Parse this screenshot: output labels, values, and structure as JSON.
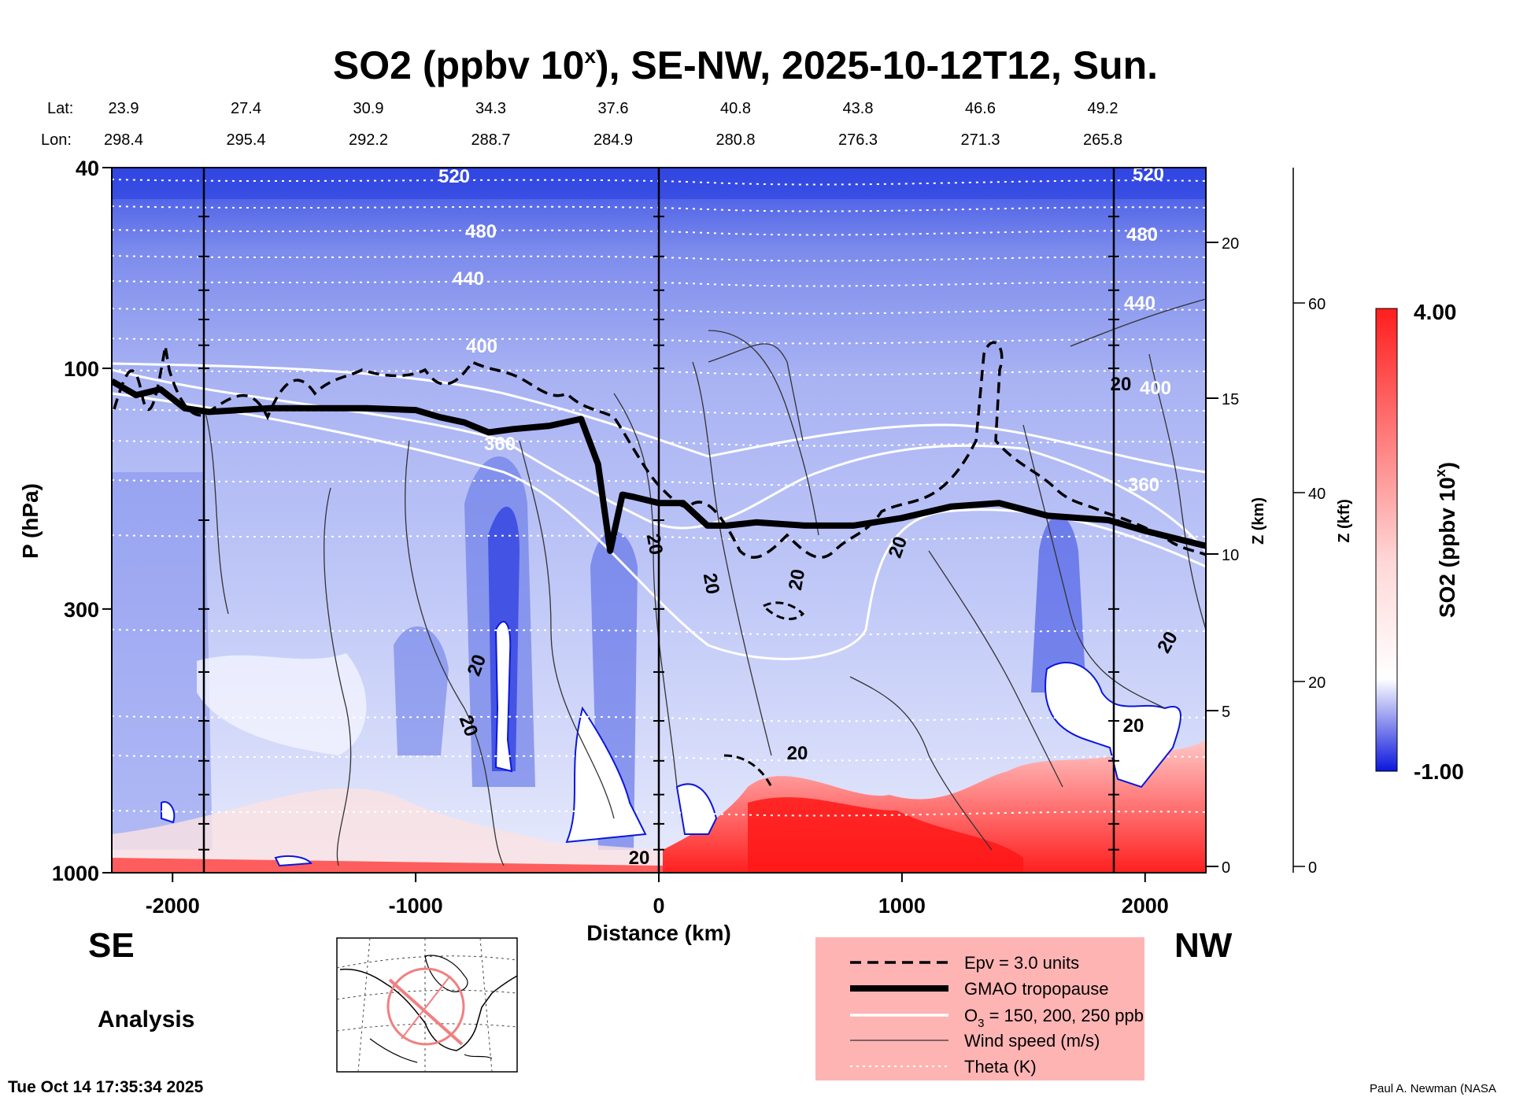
{
  "chart_data": {
    "type": "heatmap",
    "title": "SO2 (ppbv 10",
    "title_sup": "x",
    "title_rest": "), SE-NW, 2025-10-12T12, Sun.",
    "lat_label": "Lat:",
    "lon_label": "Lon:",
    "lat_values": [
      "23.9",
      "27.4",
      "30.9",
      "34.3",
      "37.6",
      "40.8",
      "43.8",
      "46.6",
      "49.2"
    ],
    "lon_values": [
      "298.4",
      "295.4",
      "292.2",
      "288.7",
      "284.9",
      "280.8",
      "276.3",
      "271.3",
      "265.8"
    ],
    "xlabel": "Distance (km)",
    "xlim": [
      -2250,
      2250
    ],
    "x_ticks": [
      -2000,
      -1000,
      0,
      1000,
      2000
    ],
    "x_tick_labels": [
      "-2000",
      "-1000",
      "0",
      "1000",
      "2000"
    ],
    "ylabel": "P (hPa)",
    "ylim": [
      1000,
      40
    ],
    "y_scale": "log",
    "y_ticks": [
      40,
      100,
      300,
      1000
    ],
    "y_tick_labels": [
      "40",
      "100",
      "300",
      "1000"
    ],
    "z_km_label": "Z (km)",
    "z_km_ticks": [
      "0",
      "5",
      "10",
      "15",
      "20"
    ],
    "z_kft_label": "Z (kft)",
    "z_kft_ticks": [
      "0",
      "20",
      "40",
      "60"
    ],
    "colorbar": {
      "label": "SO2 (ppbv 10",
      "label_sup": "x",
      "min_label": "-1.00",
      "max_label": "4.00",
      "range": [
        -1.0,
        4.0
      ],
      "colors": [
        "#0b16dc",
        "#ffffff",
        "#ff1e1e"
      ]
    },
    "theta_contours": {
      "levels": [
        400,
        440,
        480,
        520
      ],
      "labels": [
        "360",
        "400",
        "440",
        "480",
        "520",
        "400",
        "440",
        "480",
        "520",
        "360"
      ]
    },
    "wind_labels": [
      "20",
      "20",
      "20",
      "20",
      "20",
      "20",
      "20",
      "20",
      "20",
      "20",
      "20"
    ],
    "tropopause_p": [
      [
        -2250,
        106
      ],
      [
        -2150,
        113
      ],
      [
        -2050,
        110
      ],
      [
        -1950,
        120
      ],
      [
        -1850,
        122
      ],
      [
        -1600,
        120
      ],
      [
        -1400,
        120
      ],
      [
        -1200,
        120
      ],
      [
        -1000,
        121
      ],
      [
        -900,
        125
      ],
      [
        -800,
        128
      ],
      [
        -700,
        134
      ],
      [
        -600,
        132
      ],
      [
        -450,
        130
      ],
      [
        -320,
        126
      ],
      [
        -250,
        155
      ],
      [
        -200,
        230
      ],
      [
        -150,
        178
      ],
      [
        -100,
        180
      ],
      [
        0,
        185
      ],
      [
        100,
        185
      ],
      [
        200,
        205
      ],
      [
        280,
        205
      ],
      [
        400,
        202
      ],
      [
        600,
        205
      ],
      [
        800,
        205
      ],
      [
        1000,
        198
      ],
      [
        1200,
        188
      ],
      [
        1400,
        185
      ],
      [
        1600,
        196
      ],
      [
        1850,
        200
      ],
      [
        2000,
        210
      ],
      [
        2250,
        225
      ]
    ],
    "legend": [
      {
        "style": "dashed",
        "label": "Epv = 3.0 units"
      },
      {
        "style": "thick",
        "label": "GMAO tropopause"
      },
      {
        "style": "white",
        "label_parts": [
          "O",
          "3",
          " = 150, 200, 250 ppb"
        ]
      },
      {
        "style": "thin",
        "label": "Wind speed (m/s)"
      },
      {
        "style": "dotted",
        "label": "Theta (K)"
      }
    ],
    "legend_bg": "#ffb4b4",
    "legend_o3_pre": "O",
    "legend_o3_sub": "3",
    "legend_o3_post": " = 150, 200, 250 ppb",
    "left_direction": "SE",
    "right_direction": "NW",
    "mode_label": "Analysis",
    "timestamp": "Tue Oct 14 17:35:34 2025",
    "credit": "Paul A. Newman (NASA"
  }
}
